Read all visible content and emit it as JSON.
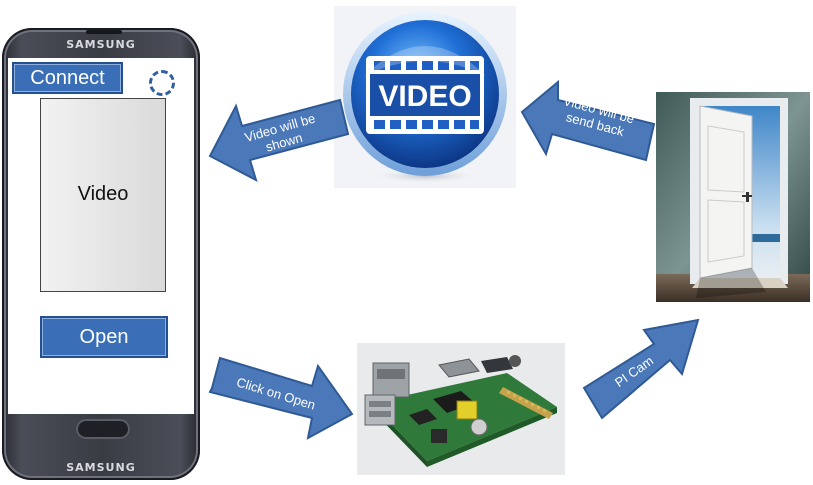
{
  "phone": {
    "brand": "SAMSUNG",
    "connect_label": "Connect",
    "video_label": "Video",
    "open_label": "Open"
  },
  "video_badge": {
    "text": "VIDEO"
  },
  "arrows": {
    "shown": [
      "Video will be",
      "shown"
    ],
    "send_back": [
      "Video will be",
      "send back"
    ],
    "click_open": "Click on Open",
    "pi_cam": "PI Cam"
  },
  "colors": {
    "arrow_fill": "#4a78b8",
    "arrow_stroke": "#2f5a95",
    "button_fill": "#3a6fb7",
    "badge_blue": "#1f5fc4"
  }
}
